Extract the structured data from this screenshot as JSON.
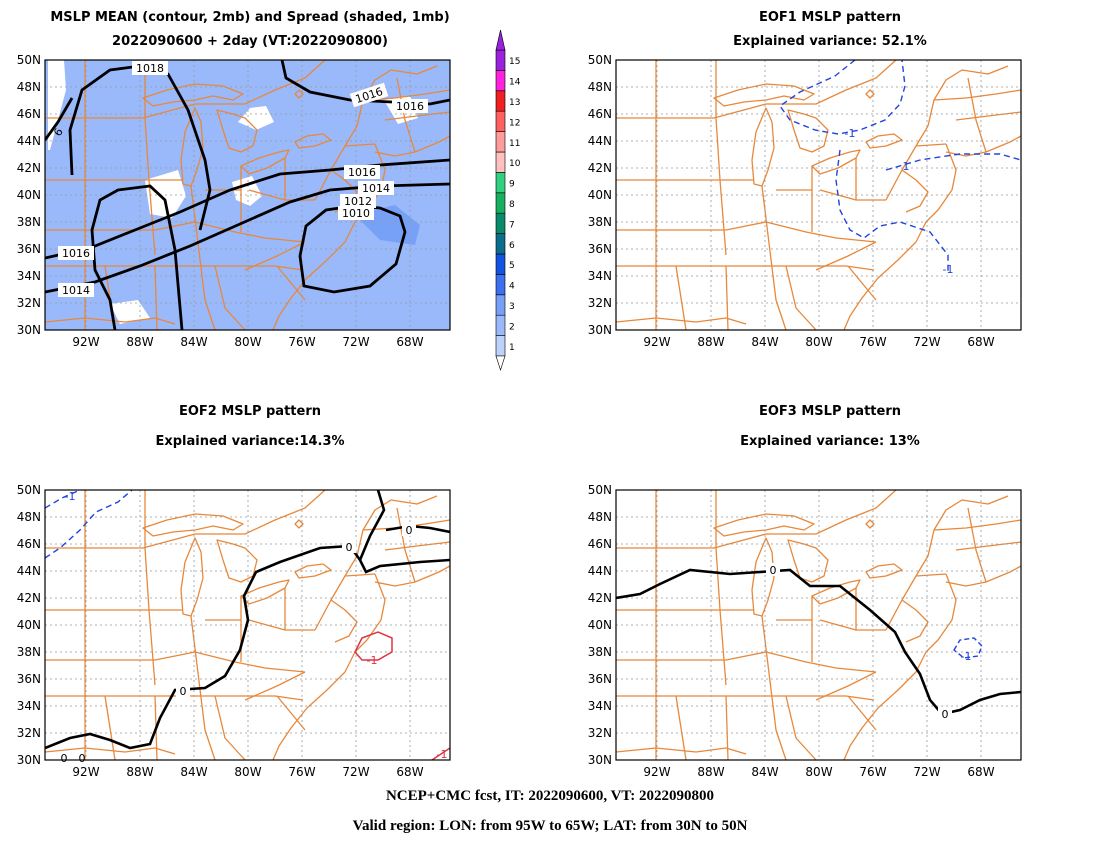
{
  "panels": [
    {
      "id": "mean-spread",
      "title_line1": "MSLP MEAN (contour, 2mb) and Spread (shaded, 1mb)",
      "title_line2": "2022090600 + 2day (VT:2022090800)",
      "contour_labels": [
        "1018",
        "1016",
        "1016",
        "1016",
        "1014",
        "1012",
        "1010",
        "1016",
        "1014",
        "6"
      ]
    },
    {
      "id": "eof1",
      "title_line1": "EOF1 MSLP pattern",
      "title_line2": "Explained variance: 52.1%",
      "contour_labels": [
        "-1",
        "1",
        "-1"
      ]
    },
    {
      "id": "eof2",
      "title_line1": "EOF2 MSLP pattern",
      "title_line2": "Explained variance:14.3%",
      "contour_labels": [
        "-1",
        "0",
        "0",
        "0",
        "-1",
        "0",
        "0",
        "-1"
      ]
    },
    {
      "id": "eof3",
      "title_line1": "EOF3 MSLP pattern",
      "title_line2": "Explained variance: 13%",
      "contour_labels": [
        "0",
        "0",
        "-1"
      ]
    }
  ],
  "axes": {
    "lat_labels": [
      "50N",
      "48N",
      "46N",
      "44N",
      "42N",
      "40N",
      "38N",
      "36N",
      "34N",
      "32N",
      "30N"
    ],
    "lon_labels": [
      "92W",
      "88W",
      "84W",
      "80W",
      "76W",
      "72W",
      "68W"
    ]
  },
  "colorbar": {
    "labels": [
      "1",
      "2",
      "3",
      "4",
      "5",
      "6",
      "7",
      "8",
      "9",
      "10",
      "11",
      "12",
      "13",
      "14",
      "15"
    ],
    "colors": [
      "#bcd2fb",
      "#9ab9fa",
      "#77a0f7",
      "#3c70f0",
      "#1452e0",
      "#0c6e8c",
      "#0c8a6c",
      "#16b060",
      "#30d080",
      "#ffc0c0",
      "#ff9b9b",
      "#ff6060",
      "#ee2020",
      "#ff22dd",
      "#9a22dd"
    ]
  },
  "colors": {
    "map_lines": "#e8883a",
    "mean_contour": "#000000",
    "negative_contour": "#2244dd",
    "positive_contour": "#dd3344",
    "spread_base": "#9ab9fa",
    "grid": "#999999"
  },
  "footer": {
    "line1": "NCEP+CMC fcst, IT: 2022090600, VT: 2022090800",
    "line2": "Valid region: LON: from 95W to 65W; LAT: from 30N to 50N"
  }
}
